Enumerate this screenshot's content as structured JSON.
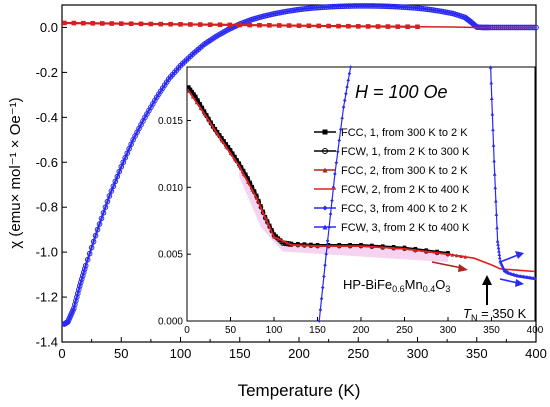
{
  "chart_data": [
    {
      "type": "line",
      "xlabel": "Temperature (K)",
      "ylabel": "χ (emu× mol⁻¹ × Oe⁻¹)",
      "xlim": [
        0,
        400
      ],
      "ylim": [
        -1.4,
        0.1
      ],
      "xticks": [
        "0",
        "50",
        "100",
        "150",
        "200",
        "250",
        "300",
        "350",
        "400"
      ],
      "yticks": [
        "-1.4",
        "-1.2",
        "-1.0",
        "-0.8",
        "-0.6",
        "-0.4",
        "-0.2",
        "0.0"
      ],
      "series": [
        {
          "color": "#2b2bf0",
          "marker": "circle",
          "x": [
            2,
            5,
            10,
            15,
            20,
            30,
            40,
            50,
            60,
            70,
            80,
            90,
            100,
            110,
            120,
            130,
            140,
            150,
            160,
            170,
            180,
            190,
            200,
            210,
            220,
            230,
            240,
            250,
            260,
            270,
            280,
            290,
            300,
            310,
            320,
            330,
            340,
            345,
            350,
            355,
            360,
            370,
            380,
            390,
            400
          ],
          "y": [
            -1.32,
            -1.31,
            -1.25,
            -1.15,
            -1.06,
            -0.9,
            -0.75,
            -0.62,
            -0.5,
            -0.4,
            -0.31,
            -0.23,
            -0.17,
            -0.12,
            -0.075,
            -0.04,
            -0.01,
            0.015,
            0.035,
            0.05,
            0.062,
            0.072,
            0.08,
            0.086,
            0.09,
            0.093,
            0.095,
            0.096,
            0.096,
            0.095,
            0.093,
            0.09,
            0.086,
            0.08,
            0.072,
            0.062,
            0.045,
            0.025,
            0.002,
            0.0,
            0.0,
            0.0,
            0.0,
            0.0,
            0.0
          ]
        },
        {
          "color": "#d42020",
          "marker": "square",
          "x": [
            2,
            50,
            100,
            150,
            200,
            250,
            300
          ],
          "y": [
            0.02,
            0.017,
            0.014,
            0.011,
            0.008,
            0.005,
            0.003
          ]
        },
        {
          "color": "#d42020",
          "marker": "none",
          "x": [
            300,
            330,
            350,
            360,
            400
          ],
          "y": [
            0.003,
            0.002,
            0.0,
            0.0,
            0.0
          ]
        }
      ]
    },
    {
      "type": "line",
      "title": "H = 100 Oe",
      "xlim": [
        0,
        400
      ],
      "ylim": [
        0,
        0.019
      ],
      "xticks": [
        "0",
        "50",
        "100",
        "150",
        "200",
        "250",
        "300",
        "350",
        "400"
      ],
      "yticks": [
        "0.000",
        "0.005",
        "0.010",
        "0.015"
      ],
      "series": [
        {
          "name": "FCC, 1, from 300 K to 2 K",
          "color": "#000000",
          "marker": "square",
          "x": [
            2,
            10,
            20,
            30,
            40,
            50,
            60,
            70,
            80,
            90,
            100,
            110,
            120,
            150,
            200,
            250,
            300
          ],
          "y": [
            0.0175,
            0.0168,
            0.0157,
            0.0146,
            0.0137,
            0.0128,
            0.0118,
            0.0107,
            0.0094,
            0.0078,
            0.0065,
            0.0059,
            0.0058,
            0.0057,
            0.0057,
            0.0055,
            0.0051
          ]
        },
        {
          "name": "FCW, 1, from 2 K to 300 K",
          "color": "#000000",
          "marker": "circle",
          "x": [
            2,
            10,
            20,
            30,
            40,
            50,
            60,
            70,
            80,
            90,
            100,
            110,
            120,
            150,
            200,
            250,
            300
          ],
          "y": [
            0.0174,
            0.0167,
            0.0156,
            0.0145,
            0.0136,
            0.0127,
            0.0117,
            0.0106,
            0.0093,
            0.0077,
            0.0064,
            0.0058,
            0.0057,
            0.0056,
            0.0056,
            0.0054,
            0.005
          ]
        },
        {
          "name": "FCC, 2, from 300 K to 2 K",
          "color": "#a8261f",
          "marker": "triangle",
          "x": [
            2,
            20,
            40,
            60,
            80,
            100,
            120,
            150,
            200,
            250,
            300,
            320
          ],
          "y": [
            0.0172,
            0.0155,
            0.0135,
            0.0116,
            0.0092,
            0.0063,
            0.0057,
            0.0056,
            0.0056,
            0.0054,
            0.005,
            0.0048
          ]
        },
        {
          "name": "FCW, 2, from 2 K to 400 K",
          "color": "#e02020",
          "marker": "none",
          "x": [
            2,
            20,
            40,
            60,
            80,
            100,
            120,
            150,
            200,
            250,
            300,
            330,
            350,
            360,
            380,
            400
          ],
          "y": [
            0.0172,
            0.0155,
            0.0135,
            0.0116,
            0.0092,
            0.0063,
            0.0057,
            0.0056,
            0.0056,
            0.0054,
            0.005,
            0.0047,
            0.0042,
            0.0039,
            0.0038,
            0.0037
          ]
        },
        {
          "name": "FCC, 3, from 400 K to 2 K",
          "color": "#2b2bf0",
          "marker": "diamond",
          "x": [
            152,
            160,
            170,
            180,
            188
          ],
          "y": [
            0.0,
            0.005,
            0.011,
            0.016,
            0.019
          ]
        },
        {
          "name": "FCW, 3, from 2 K to 400 K",
          "color": "#2b2bf0",
          "marker": "triangle",
          "x": [
            349,
            353,
            357,
            360,
            365,
            370,
            380,
            390,
            400
          ],
          "y": [
            0.019,
            0.012,
            0.006,
            0.0045,
            0.0038,
            0.0036,
            0.0034,
            0.0033,
            0.0032
          ]
        }
      ],
      "compound_label": {
        "pre": "HP-BiFe",
        "s1": "0.6",
        "mid": "Mn",
        "s2": "0.4",
        "post": "O",
        "s3": "3"
      },
      "tn_label": {
        "var": "T",
        "sub": "N",
        "rest": " = 350 K"
      }
    }
  ]
}
